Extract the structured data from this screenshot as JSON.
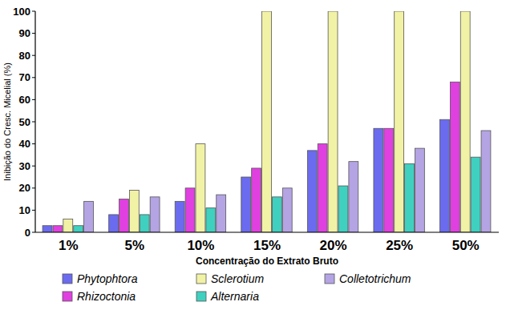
{
  "chart_data": {
    "type": "bar",
    "categories": [
      "1%",
      "5%",
      "10%",
      "15%",
      "20%",
      "25%",
      "50%"
    ],
    "series": [
      {
        "name": "Phytophtora",
        "color": "#6b6bf0",
        "values": [
          3,
          8,
          14,
          25,
          37,
          47,
          51
        ]
      },
      {
        "name": "Rhizoctonia",
        "color": "#e040e0",
        "values": [
          3,
          15,
          20,
          29,
          40,
          47,
          68
        ]
      },
      {
        "name": "Sclerotium",
        "color": "#f2f2a6",
        "values": [
          6,
          19,
          40,
          100,
          100,
          100,
          100
        ]
      },
      {
        "name": "Alternaria",
        "color": "#3fd0c0",
        "values": [
          3,
          8,
          11,
          16,
          21,
          31,
          34
        ]
      },
      {
        "name": "Colletotrichum",
        "color": "#b4a4e4",
        "values": [
          14,
          16,
          17,
          20,
          32,
          38,
          46
        ]
      }
    ],
    "x_label": "Concentração do Extrato Bruto",
    "y_label": "Inibição do Cresc. Micelial (%)",
    "ylim": [
      0,
      100
    ],
    "yticks": [
      0,
      10,
      20,
      30,
      40,
      50,
      60,
      70,
      80,
      90,
      100
    ],
    "grid": false,
    "legend": "bottom"
  }
}
